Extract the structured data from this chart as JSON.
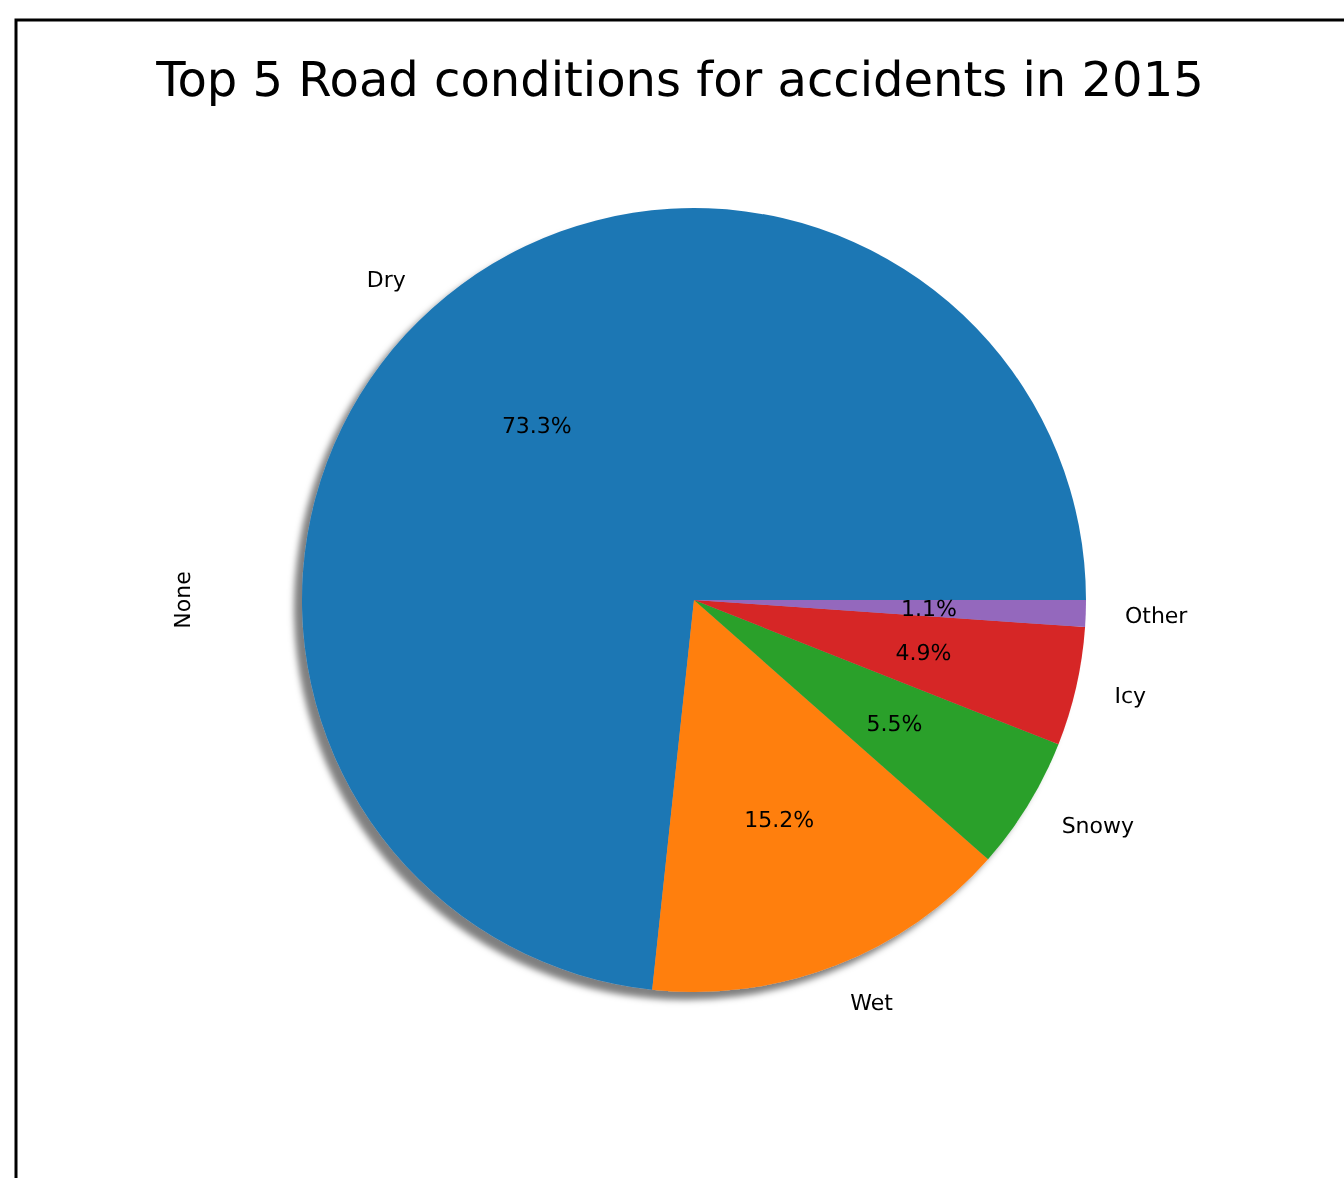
{
  "chart_data": {
    "type": "pie",
    "title": "Top 5 Road conditions for accidents in 2015",
    "ylabel": "None",
    "categories": [
      "Dry",
      "Wet",
      "Snowy",
      "Icy",
      "Other"
    ],
    "values": [
      73.3,
      15.2,
      5.5,
      4.9,
      1.1
    ],
    "colors": [
      "#1f77b4",
      "#ff7f0e",
      "#2ca02c",
      "#d62728",
      "#9467bd"
    ],
    "value_labels": [
      "73.3%",
      "15.2%",
      "5.5%",
      "4.9%",
      "1.1%"
    ],
    "legend": false
  }
}
